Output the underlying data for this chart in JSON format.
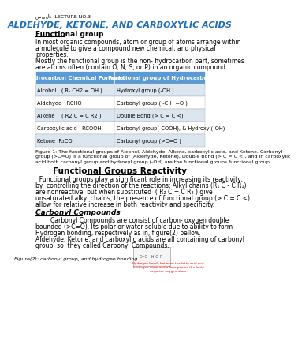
{
  "title_arabic": "شيلة  LECTURE NO.3",
  "title_main": "ALDEHYDE, KETONE, AND CARBOXYLIC ACIDS",
  "section1_heading": "Functional group",
  "section1_text": "In most organic compounds, atom or group of atoms arrange within\na molecule to give a compound new chemical, and physical\nproperties.\nMostly the functional group is the non- hydrocarbon part, sometimes\nare atoms often (contain O, N, S, or P) in an organic compound.",
  "table_header": [
    "Hydrocarbon Chemical Formula",
    "Functional group of Hydrocarbon"
  ],
  "table_rows": [
    [
      "Alcohol   ( R- CH2 = OH )",
      "Hydroxyl group (-OH )"
    ],
    [
      "Aldehyde   RCHO",
      "Carbonyl group ( -C H =O )"
    ],
    [
      "Alkene    ( R2 C = C R2 )",
      "Double Bond (> C = C <)"
    ],
    [
      "Carboxylic acid   RCOOH",
      "Carbonyl group(-COOH), & Hydroxyl(-OH)"
    ],
    [
      "Ketone  R₂CO",
      "Carbonyl group (>C=O )"
    ]
  ],
  "figure1_caption": "Figure 1: The functional groups of Alcohol, Aldehyde, Alkene, carboxylic acid, and Ketone. Carbonyl\ngroup (>C=O) is a functional group of (Aldehyde, Ketone), Double Bond (> C = C <), and in carboxylic\nacid both carbonyl group and hydroxyl group (-OH) are the functional groups functional group",
  "section2_heading": "Functional Groups Reactivity",
  "section2_text": "  Functional groups play a significant role in increasing its reactivity,\nby  controlling the direction of the reactions; Alkyl chains (R₁ C - C R₁)\nare nonreactive, but when substituted  ( R₂ C = C R₂ ) give\nunsaturated alkyl chains, the presence of functional group (> C = C <)\nallow for relative increase in both reactivity and specificity.",
  "section3_heading": "Carbonyl Compounds",
  "section3_text": "        Carbonyl Compounds are consist of carbon- oxygen double\nbounded (>C=O). Its polar or water soluble due to ability to form\nHydrogen bonding, respectively as in, figure(2) bellow.\nAldehyde, Ketone, and carboxylic acids are all containing of carbonyl\ngroup, so  they called Carbonyl Compounds.",
  "figure2_caption": "Figure(2): carbonyl group, and hydrogen bonding.",
  "note_text": "Hydrogen bonds between the fatty acid and\nhydrogen atom and a lone pair on the fairly\nnegative oxygen atom.",
  "header_bg": "#5b9bd5",
  "row_bg_odd": "#dce6f1",
  "row_bg_even": "#ffffff",
  "title_color": "#1f6eb5",
  "background_color": "#ffffff"
}
